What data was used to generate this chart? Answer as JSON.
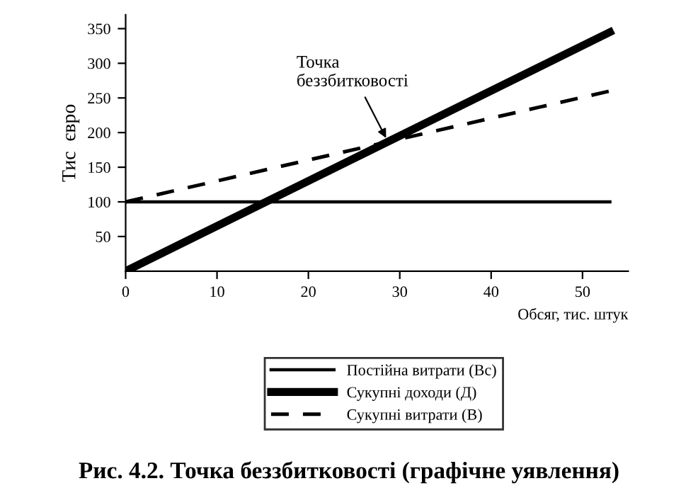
{
  "chart_data": {
    "type": "line",
    "title": "Рис. 4.2. Точка беззбитковості (графічне уявлення)",
    "xlabel": "Обсяг, тис. штук",
    "ylabel": "Тис  євро",
    "x": [
      0,
      53
    ],
    "xlim": [
      0,
      55
    ],
    "xticks": [
      0,
      10,
      20,
      30,
      40,
      50
    ],
    "ylim": [
      0,
      370
    ],
    "yticks": [
      50,
      100,
      150,
      200,
      250,
      300,
      350
    ],
    "series": [
      {
        "name": "Постійна витрати (Вс)",
        "color": "#000000",
        "values": [
          100,
          100
        ],
        "line_style": "solid"
      },
      {
        "name": "Сукупні доходи (Д)",
        "color": "#000000",
        "values": [
          0,
          345
        ],
        "line_style": "solid"
      },
      {
        "name": "Сукупні витрати (В)",
        "color": "#000000",
        "values": [
          100,
          260
        ],
        "line_style": "dashed"
      }
    ],
    "annotations": [
      {
        "text": "Точка\nбеззбитковості",
        "x": 28.7,
        "y": 187
      }
    ],
    "legend": "bottom",
    "grid": false,
    "marker": "none"
  }
}
